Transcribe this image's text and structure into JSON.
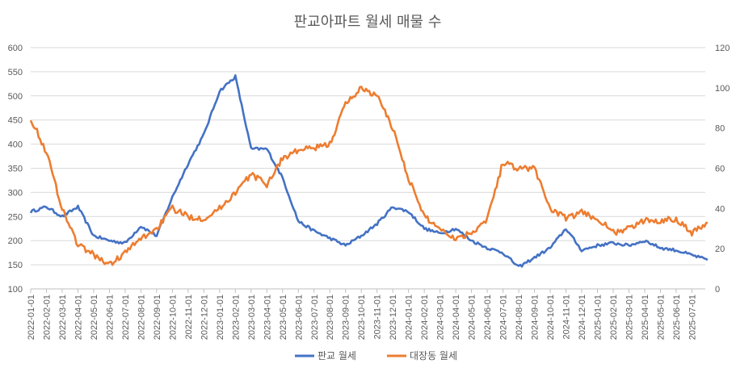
{
  "chart_data": {
    "type": "line",
    "title": "판교아파트 월세 매물 수",
    "xlabel": "",
    "ylabel": "",
    "y_left": {
      "min": 100,
      "max": 600,
      "step": 50,
      "ticks": [
        "100",
        "150",
        "200",
        "250",
        "300",
        "350",
        "400",
        "450",
        "500",
        "550",
        "600"
      ]
    },
    "y_right": {
      "min": 0,
      "max": 120,
      "step": 20,
      "ticks": [
        "0",
        "20",
        "40",
        "60",
        "80",
        "100",
        "120"
      ]
    },
    "x_ticks": [
      "2022-01-01",
      "2022-02-01",
      "2022-03-01",
      "2022-04-01",
      "2022-05-01",
      "2022-06-01",
      "2022-07-01",
      "2022-08-01",
      "2022-09-01",
      "2022-10-01",
      "2022-11-01",
      "2022-12-01",
      "2023-01-01",
      "2023-02-01",
      "2023-03-01",
      "2023-04-01",
      "2023-05-01",
      "2023-06-01",
      "2023-07-01",
      "2023-08-01",
      "2023-09-01",
      "2023-10-01",
      "2023-11-01",
      "2023-12-01",
      "2024-01-01",
      "2024-02-01",
      "2024-03-01",
      "2024-04-01",
      "2024-05-01",
      "2024-06-01",
      "2024-07-01",
      "2024-08-01",
      "2024-09-01",
      "2024-10-01",
      "2024-11-01",
      "2024-12-01",
      "2025-01-01",
      "2025-02-01",
      "2025-03-01",
      "2025-04-01",
      "2025-05-01",
      "2025-06-01",
      "2025-07-01"
    ],
    "grid": true,
    "legend_position": "bottom",
    "series": [
      {
        "name": "판교 월세",
        "axis": "left",
        "color": "#4472C4",
        "months": [
          "2022-01",
          "2022-02",
          "2022-03",
          "2022-04",
          "2022-05",
          "2022-06",
          "2022-07",
          "2022-08",
          "2022-09",
          "2022-10",
          "2022-11",
          "2022-12",
          "2023-01",
          "2023-02",
          "2023-03",
          "2023-04",
          "2023-05",
          "2023-06",
          "2023-07",
          "2023-08",
          "2023-09",
          "2023-10",
          "2023-11",
          "2023-12",
          "2024-01",
          "2024-02",
          "2024-03",
          "2024-04",
          "2024-05",
          "2024-06",
          "2024-07",
          "2024-08",
          "2024-09",
          "2024-10",
          "2024-11",
          "2024-12",
          "2025-01",
          "2025-02",
          "2025-03",
          "2025-04",
          "2025-05",
          "2025-06",
          "2025-07",
          "2025-08"
        ],
        "values": [
          260,
          270,
          250,
          270,
          210,
          200,
          195,
          230,
          210,
          290,
          360,
          420,
          510,
          540,
          390,
          390,
          330,
          240,
          220,
          205,
          190,
          210,
          235,
          270,
          260,
          225,
          215,
          225,
          200,
          185,
          175,
          145,
          165,
          185,
          225,
          180,
          190,
          195,
          190,
          200,
          185,
          180,
          170,
          160
        ]
      },
      {
        "name": "대장동 월세",
        "axis": "right",
        "color": "#ED7D31",
        "months": [
          "2022-01",
          "2022-02",
          "2022-03",
          "2022-04",
          "2022-05",
          "2022-06",
          "2022-07",
          "2022-08",
          "2022-09",
          "2022-10",
          "2022-11",
          "2022-12",
          "2023-01",
          "2023-02",
          "2023-03",
          "2023-04",
          "2023-05",
          "2023-06",
          "2023-07",
          "2023-08",
          "2023-09",
          "2023-10",
          "2023-11",
          "2023-12",
          "2024-01",
          "2024-02",
          "2024-03",
          "2024-04",
          "2024-05",
          "2024-06",
          "2024-07",
          "2024-08",
          "2024-09",
          "2024-10",
          "2024-11",
          "2024-12",
          "2025-01",
          "2025-02",
          "2025-03",
          "2025-04",
          "2025-05",
          "2025-06",
          "2025-07",
          "2025-08"
        ],
        "values": [
          85,
          68,
          40,
          22,
          17,
          12,
          18,
          25,
          30,
          40,
          36,
          35,
          40,
          48,
          57,
          52,
          65,
          69,
          70,
          72,
          92,
          100,
          96,
          80,
          55,
          36,
          30,
          25,
          28,
          35,
          63,
          60,
          60,
          40,
          35,
          38,
          35,
          28,
          30,
          34,
          34,
          35,
          28,
          33
        ]
      }
    ]
  }
}
